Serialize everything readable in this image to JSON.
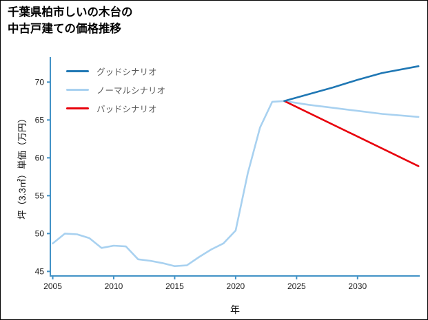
{
  "title": {
    "lines": [
      "千葉県柏市しいの木台の",
      "中古戸建ての価格推移"
    ]
  },
  "chart_data": {
    "type": "line",
    "title": "千葉県柏市しいの木台の中古戸建ての価格推移",
    "xlabel": "年",
    "ylabel": "坪（3.3㎡）単価（万円）",
    "xlim": [
      2004.8,
      2035.1
    ],
    "ylim": [
      44.4,
      73.3
    ],
    "xticks": [
      2005,
      2010,
      2015,
      2020,
      2025,
      2030
    ],
    "yticks": [
      45,
      50,
      55,
      60,
      65,
      70
    ],
    "grid": false,
    "legend_position": "upper-left",
    "axis_color": "#4292c6",
    "tick_label_color": "#1a1a1a",
    "legend_label_color": "#595959",
    "series": [
      {
        "name": "グッドシナリオ",
        "color": "#1f77b4",
        "x": [
          2024,
          2026,
          2028,
          2030,
          2032,
          2035
        ],
        "y": [
          67.5,
          68.4,
          69.3,
          70.3,
          71.2,
          72.1
        ]
      },
      {
        "name": "ノーマルシナリオ",
        "color": "#a8d1f0",
        "x": [
          2005,
          2006,
          2007,
          2008,
          2009,
          2010,
          2011,
          2012,
          2013,
          2014,
          2015,
          2016,
          2017,
          2018,
          2019,
          2020,
          2021,
          2022,
          2023,
          2024,
          2026,
          2028,
          2030,
          2032,
          2035
        ],
        "y": [
          48.7,
          50.0,
          49.9,
          49.4,
          48.1,
          48.4,
          48.3,
          46.6,
          46.4,
          46.1,
          45.7,
          45.8,
          46.9,
          47.9,
          48.7,
          50.4,
          58.0,
          64.0,
          67.4,
          67.5,
          67.0,
          66.6,
          66.2,
          65.8,
          65.4
        ]
      },
      {
        "name": "バッドシナリオ",
        "color": "#e8000b",
        "x": [
          2024,
          2029.5,
          2035
        ],
        "y": [
          67.5,
          63.2,
          58.9
        ]
      }
    ]
  }
}
